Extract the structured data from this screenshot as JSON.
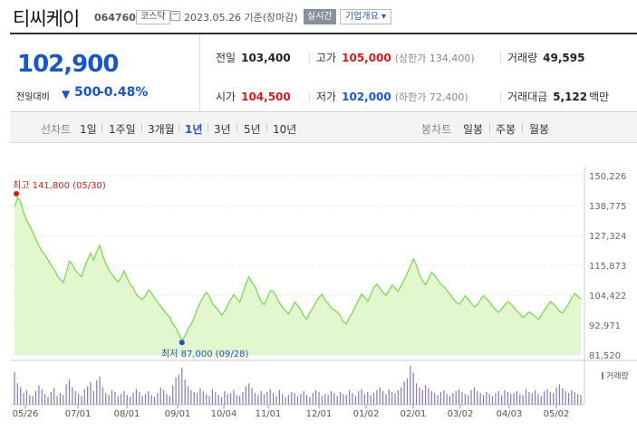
{
  "header": {
    "name": "티씨케이",
    "code": "064760",
    "market": "코스닥",
    "date": "2023.05.26 기준(장마감)",
    "realtime": "실시간",
    "corp_info": "기업개요 ▾"
  },
  "quote": {
    "price": "102,900",
    "change_label": "전일대비",
    "change_dir": "▼",
    "change": "500",
    "change_pct": "-0.48%",
    "prev_close_label": "전일",
    "prev_close": "103,400",
    "high_label": "고가",
    "high": "105,000",
    "upper_limit": "(상한가 134,400)",
    "volume_label": "거래량",
    "volume": "49,595",
    "open_label": "시가",
    "open": "104,500",
    "low_label": "저가",
    "low": "102,000",
    "lower_limit": "(하한가 72,400)",
    "amount_label": "거래대금",
    "amount": "5,122",
    "amount_unit": "백만"
  },
  "period_tabs": {
    "label": "선차트",
    "items": [
      "1일",
      "1주일",
      "3개월",
      "1년",
      "3년",
      "5년",
      "10년"
    ],
    "selected": "1년"
  },
  "candle_tabs": {
    "label": "봉차트",
    "items": [
      "일봉",
      "주봉",
      "월봉"
    ]
  },
  "colors": {
    "accent_blue": "#1a55c8",
    "up_red": "#d91a1a",
    "line_green": "#7ed957",
    "fill_green": "#e3f7cf",
    "volume_purple": "#8878b8"
  },
  "chart_data": {
    "type": "area",
    "y_ticks": [
      "150,226",
      "138,775",
      "127,324",
      "115,873",
      "104,422",
      "92,971",
      "81,520"
    ],
    "ylim": [
      81520,
      150226
    ],
    "x_ticks": [
      "05/26",
      "07/01",
      "08/01",
      "09/01",
      "10/04",
      "11/01",
      "12/01",
      "01/02",
      "02/01",
      "03/02",
      "04/03",
      "05/02"
    ],
    "max_label": "최고 141,800 (05/30)",
    "min_label": "최저 87,000 (09/28)",
    "volume_legend": "거래량",
    "series": [
      {
        "values": [
          138200,
          141800,
          140500,
          136000,
          133200,
          131000,
          128500,
          126000,
          123500,
          121200,
          119800,
          118000,
          116000,
          114500,
          112000,
          110500,
          109200,
          113000,
          117500,
          116200,
          114000,
          112800,
          111500,
          115200,
          118000,
          120500,
          117800,
          121000,
          123500,
          119800,
          116500,
          114000,
          112500,
          110800,
          109500,
          111200,
          113800,
          111000,
          108500,
          107200,
          104800,
          103500,
          102800,
          104200,
          106500,
          105300,
          103200,
          101800,
          100200,
          98800,
          97200,
          96000,
          93500,
          91800,
          89500,
          87000,
          88800,
          91500,
          93200,
          95800,
          99200,
          101500,
          103800,
          105500,
          104000,
          101200,
          100000,
          98500,
          96800,
          98200,
          100500,
          102800,
          104600,
          103200,
          101800,
          105200,
          108800,
          111500,
          109200,
          107800,
          104600,
          102000,
          100800,
          103300,
          106200,
          105800,
          103900,
          101500,
          99800,
          98600,
          97200,
          99400,
          101800,
          100500,
          98800,
          96500,
          95200,
          97800,
          99600,
          101800,
          103500,
          104800,
          102600,
          101200,
          99500,
          98800,
          97900,
          96600,
          94200,
          93500,
          95800,
          97800,
          100200,
          102600,
          104800,
          103600,
          102100,
          104600,
          107500,
          108700,
          107100,
          105600,
          104300,
          106200,
          108400,
          107200,
          105900,
          108100,
          110400,
          112800,
          115500,
          118300,
          115900,
          112200,
          109900,
          108400,
          110800,
          113200,
          112000,
          110200,
          108600,
          107800,
          106300,
          104900,
          103200,
          101800,
          100900,
          102400,
          104100,
          102900,
          101300,
          99900,
          100800,
          102600,
          104300,
          103100,
          101900,
          100200,
          98900,
          97800,
          99200,
          100600,
          102000,
          101100,
          99800,
          98400,
          97200,
          95900,
          96800,
          98000,
          97200,
          96300,
          95100,
          96800,
          98600,
          100400,
          102100,
          101000,
          99800,
          98300,
          97600,
          99300,
          101200,
          103400,
          105000,
          104000,
          102900
        ]
      }
    ],
    "volume": [
      34,
      22,
      18,
      12,
      15,
      10,
      9,
      14,
      20,
      16,
      11,
      8,
      13,
      17,
      9,
      12,
      10,
      21,
      26,
      18,
      14,
      11,
      9,
      16,
      19,
      23,
      14,
      25,
      29,
      18,
      12,
      10,
      15,
      13,
      9,
      11,
      14,
      10,
      8,
      12,
      16,
      13,
      9,
      11,
      14,
      10,
      8,
      12,
      18,
      15,
      11,
      9,
      20,
      28,
      31,
      38,
      26,
      19,
      15,
      13,
      12,
      17,
      14,
      11,
      9,
      16,
      13,
      10,
      8,
      14,
      11,
      12,
      15,
      10,
      9,
      13,
      19,
      22,
      17,
      12,
      10,
      14,
      11,
      13,
      16,
      12,
      9,
      15,
      11,
      8,
      10,
      13,
      12,
      9,
      11,
      14,
      10,
      8,
      12,
      15,
      13,
      9,
      11,
      10,
      14,
      12,
      9,
      13,
      11,
      10,
      15,
      12,
      9,
      14,
      16,
      11,
      13,
      10,
      12,
      15,
      18,
      14,
      11,
      16,
      13,
      12,
      15,
      18,
      24,
      27,
      40,
      33,
      22,
      18,
      15,
      20,
      17,
      14,
      12,
      10,
      13,
      15,
      11,
      9,
      12,
      14,
      16,
      13,
      11,
      10,
      15,
      18,
      14,
      12,
      10,
      13,
      11,
      9,
      12,
      14,
      10,
      15,
      13,
      11,
      12,
      14,
      11,
      10,
      16,
      13,
      12,
      15,
      11,
      9,
      14,
      16,
      13,
      12,
      18,
      21,
      17,
      14,
      12,
      15,
      13,
      11,
      10
    ]
  }
}
